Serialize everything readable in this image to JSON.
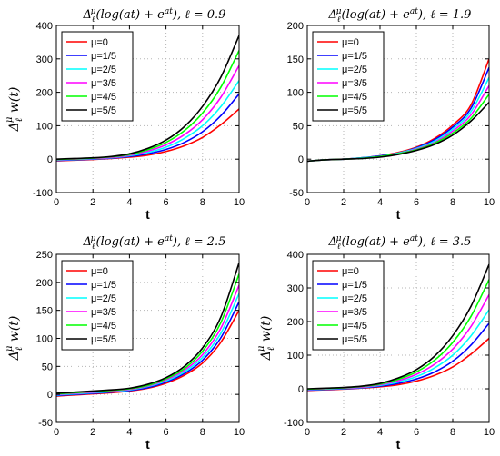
{
  "chart_data": [
    {
      "type": "line",
      "title": "Δ_ℓ^μ(log(at) + e^{at}), ℓ = 0.9",
      "xlabel": "t",
      "ylabel": "Δ_ℓ^μ w(t)",
      "xlim": [
        0,
        10
      ],
      "ylim": [
        -100,
        400
      ],
      "xticks": [
        0,
        2,
        4,
        6,
        8,
        10
      ],
      "yticks": [
        -100,
        0,
        100,
        200,
        300,
        400
      ],
      "grid": true,
      "legend": "top-left",
      "x": [
        0,
        1,
        2,
        3,
        4,
        5,
        6,
        7,
        8,
        9,
        10
      ],
      "series": [
        {
          "name": "μ=0",
          "color": "#ff0000",
          "values": [
            -5,
            -3,
            -1,
            2,
            6,
            12,
            23,
            40,
            65,
            103,
            150
          ]
        },
        {
          "name": "μ=1/5",
          "color": "#0000ff",
          "values": [
            -4,
            -2,
            0,
            3,
            8,
            16,
            29,
            50,
            82,
            130,
            195
          ]
        },
        {
          "name": "μ=2/5",
          "color": "#00ffff",
          "values": [
            -3,
            -1,
            1,
            4,
            10,
            20,
            36,
            62,
            100,
            157,
            235
          ]
        },
        {
          "name": "μ=3/5",
          "color": "#ff00ff",
          "values": [
            -2,
            0,
            2,
            5,
            12,
            24,
            43,
            73,
            118,
            185,
            280
          ]
        },
        {
          "name": "μ=4/5",
          "color": "#00ff00",
          "values": [
            -1,
            1,
            3,
            7,
            14,
            28,
            50,
            85,
            138,
            215,
            325
          ]
        },
        {
          "name": "μ=5/5",
          "color": "#000000",
          "values": [
            0,
            2,
            4,
            8,
            16,
            32,
            57,
            97,
            158,
            245,
            370
          ]
        }
      ]
    },
    {
      "type": "line",
      "title": "Δ_ℓ^μ(log(at) + e^{at}), ℓ = 1.9",
      "xlabel": "t",
      "ylabel": "",
      "xlim": [
        0,
        10
      ],
      "ylim": [
        -50,
        200
      ],
      "xticks": [
        0,
        2,
        4,
        6,
        8,
        10
      ],
      "yticks": [
        -50,
        0,
        50,
        100,
        150,
        200
      ],
      "grid": true,
      "legend": "top-left",
      "x": [
        0,
        1,
        2,
        3,
        4,
        5,
        6,
        7,
        8,
        9,
        10
      ],
      "series": [
        {
          "name": "μ=0",
          "color": "#ff0000",
          "values": [
            -3,
            -1,
            0,
            2,
            5,
            10,
            18,
            31,
            51,
            81,
            150
          ]
        },
        {
          "name": "μ=1/5",
          "color": "#0000ff",
          "values": [
            -3,
            -1,
            0,
            2,
            5,
            9,
            17,
            29,
            48,
            76,
            137
          ]
        },
        {
          "name": "μ=2/5",
          "color": "#00ffff",
          "values": [
            -3,
            -1,
            0,
            2,
            4,
            9,
            16,
            27,
            45,
            71,
            122
          ]
        },
        {
          "name": "μ=3/5",
          "color": "#ff00ff",
          "values": [
            -3,
            -1,
            0,
            1,
            4,
            8,
            15,
            25,
            42,
            66,
            110
          ]
        },
        {
          "name": "μ=4/5",
          "color": "#00ff00",
          "values": [
            -3,
            -1,
            0,
            1,
            4,
            8,
            14,
            24,
            39,
            61,
            97
          ]
        },
        {
          "name": "μ=5/5",
          "color": "#000000",
          "values": [
            -3,
            -1,
            0,
            1,
            3,
            7,
            13,
            22,
            36,
            57,
            85
          ]
        }
      ]
    },
    {
      "type": "line",
      "title": "Δ_ℓ^μ(log(at) + e^{at}), ℓ = 2.5",
      "xlabel": "t",
      "ylabel": "Δ_ℓ^μ w(t)",
      "xlim": [
        0,
        10
      ],
      "ylim": [
        -50,
        250
      ],
      "xticks": [
        0,
        2,
        4,
        6,
        8,
        10
      ],
      "yticks": [
        -50,
        0,
        50,
        100,
        150,
        200,
        250
      ],
      "grid": true,
      "legend": "top-left",
      "x": [
        0,
        1,
        2,
        3,
        4,
        5,
        6,
        7,
        8,
        9,
        10
      ],
      "series": [
        {
          "name": "μ=0",
          "color": "#ff0000",
          "values": [
            -3,
            -1,
            1,
            3,
            6,
            11,
            20,
            34,
            56,
            93,
            150
          ]
        },
        {
          "name": "μ=1/5",
          "color": "#0000ff",
          "values": [
            -2,
            0,
            2,
            4,
            7,
            12,
            22,
            37,
            61,
            101,
            165
          ]
        },
        {
          "name": "μ=2/5",
          "color": "#00ffff",
          "values": [
            -1,
            1,
            3,
            5,
            8,
            14,
            24,
            40,
            66,
            109,
            180
          ]
        },
        {
          "name": "μ=3/5",
          "color": "#ff00ff",
          "values": [
            0,
            2,
            4,
            6,
            9,
            15,
            26,
            43,
            71,
            118,
            195
          ]
        },
        {
          "name": "μ=4/5",
          "color": "#00ff00",
          "values": [
            1,
            3,
            5,
            7,
            10,
            16,
            28,
            46,
            77,
            128,
            215
          ]
        },
        {
          "name": "μ=5/5",
          "color": "#000000",
          "values": [
            2,
            4,
            6,
            8,
            11,
            18,
            30,
            50,
            83,
            138,
            235
          ]
        }
      ]
    },
    {
      "type": "line",
      "title": "Δ_ℓ^μ(log(at) + e^{at}), ℓ = 3.5",
      "xlabel": "t",
      "ylabel": "Δ_ℓ^μ w(t)",
      "xlim": [
        0,
        10
      ],
      "ylim": [
        -100,
        400
      ],
      "xticks": [
        0,
        2,
        4,
        6,
        8,
        10
      ],
      "yticks": [
        -100,
        0,
        100,
        200,
        300,
        400
      ],
      "grid": true,
      "legend": "top-left",
      "x": [
        0,
        1,
        2,
        3,
        4,
        5,
        6,
        7,
        8,
        9,
        10
      ],
      "series": [
        {
          "name": "μ=0",
          "color": "#ff0000",
          "values": [
            -5,
            -3,
            -1,
            2,
            6,
            12,
            23,
            40,
            65,
            103,
            150
          ]
        },
        {
          "name": "μ=1/5",
          "color": "#0000ff",
          "values": [
            -4,
            -2,
            0,
            3,
            8,
            16,
            29,
            50,
            82,
            130,
            195
          ]
        },
        {
          "name": "μ=2/5",
          "color": "#00ffff",
          "values": [
            -3,
            -1,
            1,
            4,
            10,
            20,
            36,
            62,
            100,
            157,
            235
          ]
        },
        {
          "name": "μ=3/5",
          "color": "#ff00ff",
          "values": [
            -2,
            0,
            2,
            5,
            12,
            24,
            43,
            73,
            118,
            185,
            280
          ]
        },
        {
          "name": "μ=4/5",
          "color": "#00ff00",
          "values": [
            -1,
            1,
            3,
            7,
            14,
            28,
            50,
            85,
            138,
            215,
            325
          ]
        },
        {
          "name": "μ=5/5",
          "color": "#000000",
          "values": [
            0,
            2,
            4,
            8,
            16,
            32,
            57,
            97,
            158,
            245,
            370
          ]
        }
      ]
    }
  ]
}
